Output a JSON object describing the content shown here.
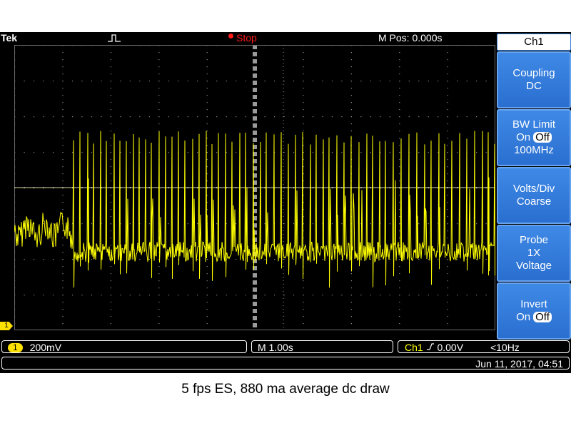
{
  "topbar": {
    "brand": "Tek",
    "status": "Stop",
    "mpos": "M Pos: 0.000s"
  },
  "side_menu": {
    "title": "Ch1",
    "buttons": [
      {
        "line1": "Coupling",
        "line2": "DC"
      },
      {
        "line1": "BW Limit",
        "on": "On",
        "off": "Off",
        "line3": "100MHz"
      },
      {
        "line1": "Volts/Div",
        "line2": "Coarse"
      },
      {
        "line1": "Probe",
        "line2": "1X",
        "line3": "Voltage"
      },
      {
        "line1": "Invert",
        "on": "On",
        "off": "Off"
      }
    ]
  },
  "bottom": {
    "channel_badge": "1",
    "volts_div": "200mV",
    "timebase": "M 1.00s",
    "trigger_channel": "Ch1",
    "trigger_level": "0.00V",
    "trigger_freq": "<10Hz",
    "datetime": "Jun 11, 2017, 04:51"
  },
  "ground_marker": "1",
  "caption": "5 fps ES, 880 ma average dc draw",
  "colors": {
    "trace": "#ffff00",
    "grid": "#7a7a7a",
    "menu_button": "#2f78dc",
    "stop": "#ff1a1a"
  }
}
